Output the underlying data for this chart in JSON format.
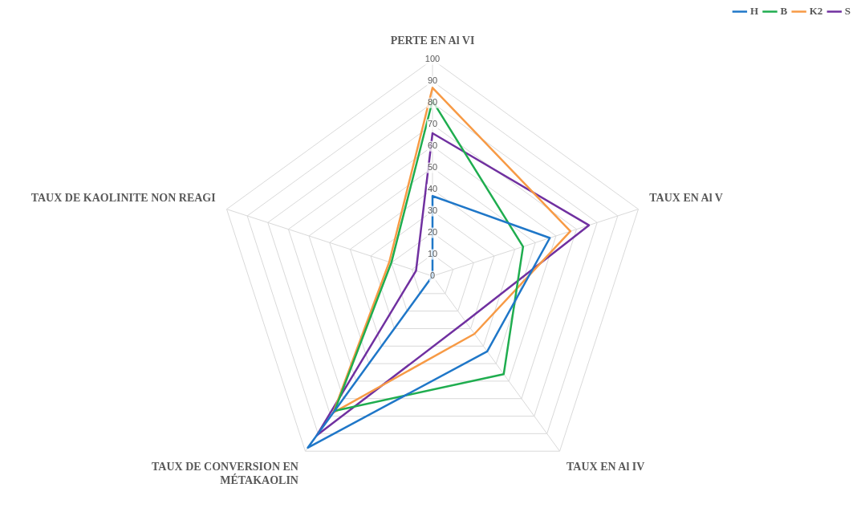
{
  "chart_data": {
    "type": "radar",
    "categories": [
      "PERTE EN Al VI",
      "TAUX EN Al V",
      "TAUX EN Al IV",
      "TAUX DE CONVERSION EN MÉTAKAOLIN",
      "TAUX DE KAOLINITE NON REAGI"
    ],
    "series": [
      {
        "name": "H",
        "color": "#1f77c8",
        "values": [
          37,
          57,
          43,
          98,
          0
        ]
      },
      {
        "name": "B",
        "color": "#1fad4f",
        "values": [
          81,
          44,
          56,
          77,
          20
        ]
      },
      {
        "name": "K2",
        "color": "#f79a45",
        "values": [
          87,
          67,
          33,
          78,
          21
        ]
      },
      {
        "name": "S",
        "color": "#7030a0",
        "values": [
          66,
          76,
          26,
          91,
          8
        ]
      }
    ],
    "ylim": [
      0,
      100
    ],
    "yticks": [
      0,
      10,
      20,
      30,
      40,
      50,
      60,
      70,
      80,
      90,
      100
    ],
    "grid": true,
    "legend": "top right",
    "marker": "none"
  }
}
